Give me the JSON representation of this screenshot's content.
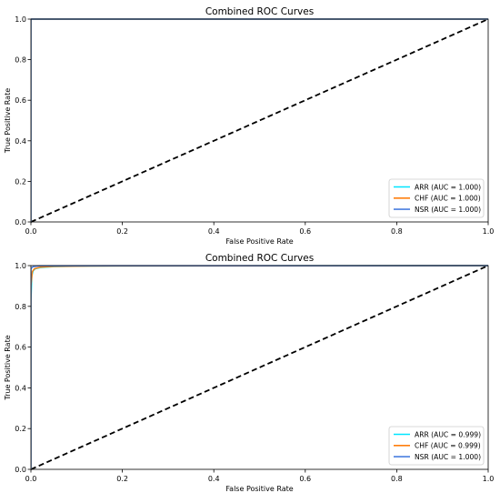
{
  "chart_data": [
    {
      "type": "line",
      "title": "Combined ROC Curves",
      "xlabel": "False Positive Rate",
      "ylabel": "True Positive Rate",
      "xlim": [
        0,
        1
      ],
      "ylim": [
        0,
        1
      ],
      "xticks": [
        "0.0",
        "0.2",
        "0.4",
        "0.6",
        "0.8",
        "1.0"
      ],
      "yticks": [
        "0.0",
        "0.2",
        "0.4",
        "0.6",
        "0.8",
        "1.0"
      ],
      "grid": false,
      "legend_position": "lower-right",
      "series": [
        {
          "name": "ARR (AUC = 1.000)",
          "color": "#00e5ff",
          "x": [
            0,
            0,
            1
          ],
          "y": [
            0,
            1,
            1
          ]
        },
        {
          "name": "CHF (AUC = 1.000)",
          "color": "#ff7f0e",
          "x": [
            0,
            0,
            1
          ],
          "y": [
            0,
            1,
            1
          ]
        },
        {
          "name": "NSR (AUC = 1.000)",
          "color": "#4a7fe0",
          "x": [
            0,
            0,
            1
          ],
          "y": [
            0,
            1,
            1
          ]
        }
      ],
      "reference_line": {
        "color": "#000000",
        "style": "dashed",
        "x": [
          0,
          1
        ],
        "y": [
          0,
          1
        ]
      }
    },
    {
      "type": "line",
      "title": "Combined ROC Curves",
      "xlabel": "False Positive Rate",
      "ylabel": "True Positive Rate",
      "xlim": [
        0,
        1
      ],
      "ylim": [
        0,
        1
      ],
      "xticks": [
        "0.0",
        "0.2",
        "0.4",
        "0.6",
        "0.8",
        "1.0"
      ],
      "yticks": [
        "0.0",
        "0.2",
        "0.4",
        "0.6",
        "0.8",
        "1.0"
      ],
      "grid": false,
      "legend_position": "lower-right",
      "series": [
        {
          "name": "ARR (AUC = 0.999)",
          "color": "#00e5ff",
          "x": [
            0,
            0,
            0.002,
            0.005,
            0.01,
            0.02,
            0.05,
            0.13,
            1
          ],
          "y": [
            0,
            0.82,
            0.95,
            0.975,
            0.985,
            0.99,
            0.995,
            0.998,
            1
          ]
        },
        {
          "name": "CHF (AUC = 0.999)",
          "color": "#ff7f0e",
          "x": [
            0,
            0,
            0.003,
            0.008,
            0.02,
            0.05,
            0.13,
            1
          ],
          "y": [
            0,
            0.9,
            0.97,
            0.985,
            0.992,
            0.996,
            0.998,
            1
          ]
        },
        {
          "name": "NSR (AUC = 1.000)",
          "color": "#4a7fe0",
          "x": [
            0,
            0,
            0.005,
            0.02,
            1
          ],
          "y": [
            0,
            0.985,
            0.995,
            0.999,
            1
          ]
        }
      ],
      "reference_line": {
        "color": "#000000",
        "style": "dashed",
        "x": [
          0,
          1
        ],
        "y": [
          0,
          1
        ]
      }
    }
  ]
}
